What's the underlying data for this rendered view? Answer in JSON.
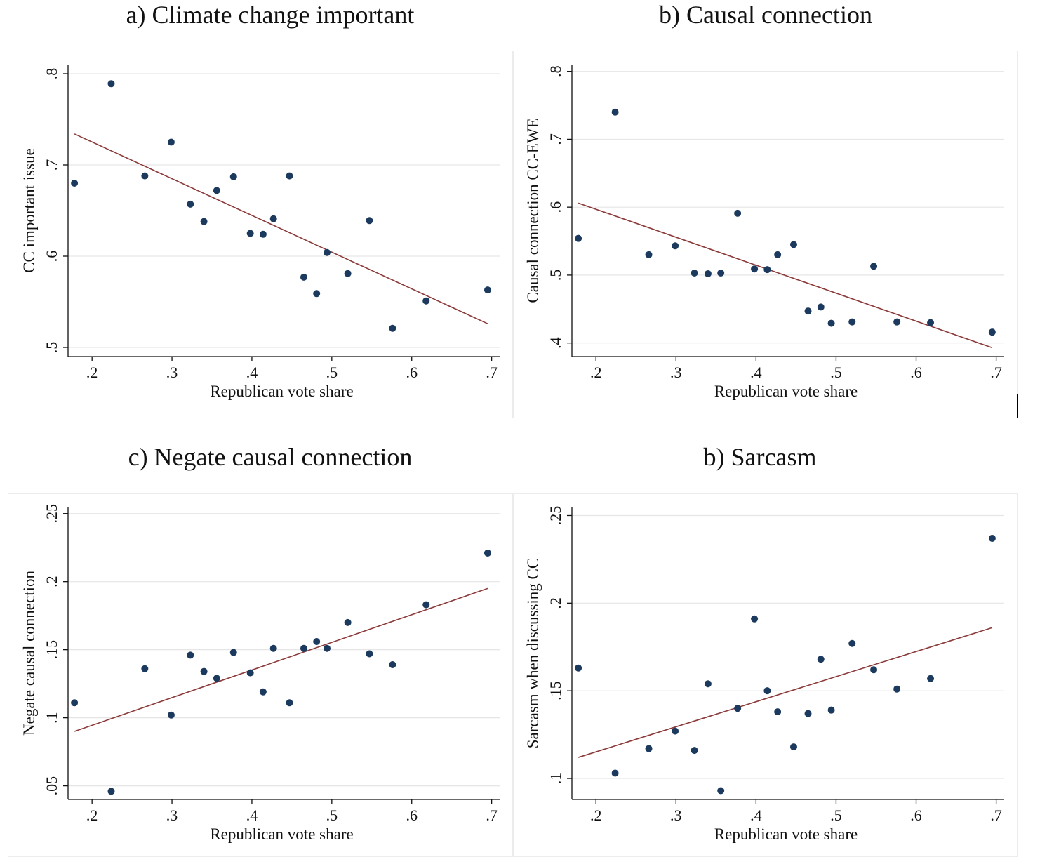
{
  "colors": {
    "marker": "#1c3a5e",
    "fit_line": "#8b3a3a",
    "grid": "#e6e6e6",
    "axis": "#111111"
  },
  "chart_data": [
    {
      "type": "scatter",
      "title": "a) Climate change important",
      "xlabel": "Republican vote share",
      "ylabel": "CC important issue",
      "xlim": [
        0.17,
        0.71
      ],
      "ylim": [
        0.49,
        0.81
      ],
      "xticks": [
        0.2,
        0.3,
        0.4,
        0.5,
        0.6,
        0.7
      ],
      "xtick_labels": [
        ".2",
        ".3",
        ".4",
        ".5",
        ".6",
        ".7"
      ],
      "yticks": [
        0.5,
        0.6,
        0.7,
        0.8
      ],
      "ytick_labels": [
        ".5",
        ".6",
        ".7",
        ".8"
      ],
      "grid": true,
      "points": [
        [
          0.178,
          0.68
        ],
        [
          0.224,
          0.789
        ],
        [
          0.266,
          0.688
        ],
        [
          0.299,
          0.725
        ],
        [
          0.323,
          0.657
        ],
        [
          0.34,
          0.638
        ],
        [
          0.356,
          0.672
        ],
        [
          0.377,
          0.687
        ],
        [
          0.398,
          0.625
        ],
        [
          0.414,
          0.624
        ],
        [
          0.427,
          0.641
        ],
        [
          0.447,
          0.688
        ],
        [
          0.465,
          0.577
        ],
        [
          0.481,
          0.559
        ],
        [
          0.494,
          0.604
        ],
        [
          0.52,
          0.581
        ],
        [
          0.547,
          0.639
        ],
        [
          0.576,
          0.521
        ],
        [
          0.618,
          0.551
        ],
        [
          0.695,
          0.563
        ]
      ],
      "fit": [
        [
          0.178,
          0.734
        ],
        [
          0.695,
          0.526
        ]
      ]
    },
    {
      "type": "scatter",
      "title": "b) Causal connection",
      "xlabel": "Republican vote share",
      "ylabel": "Causal connection CC-EWE",
      "xlim": [
        0.17,
        0.71
      ],
      "ylim": [
        0.38,
        0.81
      ],
      "xticks": [
        0.2,
        0.3,
        0.4,
        0.5,
        0.6,
        0.7
      ],
      "xtick_labels": [
        ".2",
        ".3",
        ".4",
        ".5",
        ".6",
        ".7"
      ],
      "yticks": [
        0.4,
        0.5,
        0.6,
        0.7,
        0.8
      ],
      "ytick_labels": [
        ".4",
        ".5",
        ".6",
        ".7",
        ".8"
      ],
      "grid": true,
      "points": [
        [
          0.178,
          0.554
        ],
        [
          0.224,
          0.74
        ],
        [
          0.266,
          0.53
        ],
        [
          0.299,
          0.543
        ],
        [
          0.323,
          0.503
        ],
        [
          0.34,
          0.502
        ],
        [
          0.356,
          0.503
        ],
        [
          0.377,
          0.591
        ],
        [
          0.398,
          0.509
        ],
        [
          0.414,
          0.508
        ],
        [
          0.427,
          0.53
        ],
        [
          0.447,
          0.545
        ],
        [
          0.465,
          0.447
        ],
        [
          0.481,
          0.453
        ],
        [
          0.494,
          0.429
        ],
        [
          0.52,
          0.431
        ],
        [
          0.547,
          0.513
        ],
        [
          0.576,
          0.431
        ],
        [
          0.618,
          0.43
        ],
        [
          0.695,
          0.416
        ]
      ],
      "fit": [
        [
          0.178,
          0.606
        ],
        [
          0.695,
          0.393
        ]
      ]
    },
    {
      "type": "scatter",
      "title": "c) Negate causal connection",
      "xlabel": "Republican vote share",
      "ylabel": "Negate causal connection",
      "xlim": [
        0.17,
        0.71
      ],
      "ylim": [
        0.04,
        0.255
      ],
      "xticks": [
        0.2,
        0.3,
        0.4,
        0.5,
        0.6,
        0.7
      ],
      "xtick_labels": [
        ".2",
        ".3",
        ".4",
        ".5",
        ".6",
        ".7"
      ],
      "yticks": [
        0.05,
        0.1,
        0.15,
        0.2,
        0.25
      ],
      "ytick_labels": [
        ".05",
        ".1",
        ".15",
        ".2",
        ".25"
      ],
      "grid": true,
      "points": [
        [
          0.178,
          0.111
        ],
        [
          0.224,
          0.046
        ],
        [
          0.266,
          0.136
        ],
        [
          0.299,
          0.102
        ],
        [
          0.323,
          0.146
        ],
        [
          0.34,
          0.134
        ],
        [
          0.356,
          0.129
        ],
        [
          0.377,
          0.148
        ],
        [
          0.398,
          0.133
        ],
        [
          0.414,
          0.119
        ],
        [
          0.427,
          0.151
        ],
        [
          0.447,
          0.111
        ],
        [
          0.465,
          0.151
        ],
        [
          0.481,
          0.156
        ],
        [
          0.494,
          0.151
        ],
        [
          0.52,
          0.17
        ],
        [
          0.547,
          0.147
        ],
        [
          0.576,
          0.139
        ],
        [
          0.618,
          0.183
        ],
        [
          0.695,
          0.221
        ]
      ],
      "fit": [
        [
          0.178,
          0.09
        ],
        [
          0.695,
          0.195
        ]
      ]
    },
    {
      "type": "scatter",
      "title": "b) Sarcasm",
      "xlabel": "Republican vote share",
      "ylabel": "Sarcasm when discussing CC",
      "xlim": [
        0.17,
        0.71
      ],
      "ylim": [
        0.088,
        0.255
      ],
      "xticks": [
        0.2,
        0.3,
        0.4,
        0.5,
        0.6,
        0.7
      ],
      "xtick_labels": [
        ".2",
        ".3",
        ".4",
        ".5",
        ".6",
        ".7"
      ],
      "yticks": [
        0.1,
        0.15,
        0.2,
        0.25
      ],
      "ytick_labels": [
        ".1",
        ".15",
        ".2",
        ".25"
      ],
      "grid": true,
      "points": [
        [
          0.178,
          0.163
        ],
        [
          0.224,
          0.103
        ],
        [
          0.266,
          0.117
        ],
        [
          0.299,
          0.127
        ],
        [
          0.323,
          0.116
        ],
        [
          0.34,
          0.154
        ],
        [
          0.356,
          0.093
        ],
        [
          0.377,
          0.14
        ],
        [
          0.398,
          0.191
        ],
        [
          0.414,
          0.15
        ],
        [
          0.427,
          0.138
        ],
        [
          0.447,
          0.118
        ],
        [
          0.465,
          0.137
        ],
        [
          0.481,
          0.168
        ],
        [
          0.494,
          0.139
        ],
        [
          0.52,
          0.177
        ],
        [
          0.547,
          0.162
        ],
        [
          0.576,
          0.151
        ],
        [
          0.618,
          0.157
        ],
        [
          0.695,
          0.237
        ]
      ],
      "fit": [
        [
          0.178,
          0.112
        ],
        [
          0.695,
          0.186
        ]
      ]
    }
  ]
}
